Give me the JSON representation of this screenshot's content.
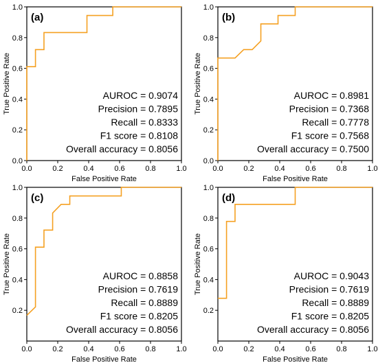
{
  "chart_data": [
    {
      "type": "line",
      "panel_label": "(a)",
      "xlabel": "False Positive Rate",
      "ylabel": "True Positive Rate",
      "xlim": [
        0,
        1
      ],
      "ylim": [
        0,
        1
      ],
      "xticks": [
        "0.0",
        "0.2",
        "0.4",
        "0.6",
        "0.8",
        "1.0"
      ],
      "yticks": [
        "0.0",
        "0.2",
        "0.4",
        "0.6",
        "0.8",
        "1.0"
      ],
      "grid": false,
      "series": [
        {
          "color": "#F5A021",
          "x": [
            0,
            0,
            0.056,
            0.056,
            0.111,
            0.111,
            0.389,
            0.389,
            0.556,
            0.556,
            1.0
          ],
          "y": [
            0,
            0.611,
            0.611,
            0.722,
            0.722,
            0.833,
            0.833,
            0.944,
            0.944,
            1.0,
            1.0
          ]
        }
      ],
      "metrics": [
        "AUROC = 0.9074",
        "Precision = 0.7895",
        "Recall = 0.8333",
        "F1 score = 0.8108",
        "Overall accuracy = 0.8056"
      ]
    },
    {
      "type": "line",
      "panel_label": "(b)",
      "xlabel": "False Positive Rate",
      "ylabel": "True Positive Rate",
      "xlim": [
        0,
        1
      ],
      "ylim": [
        0,
        1
      ],
      "xticks": [
        "0.0",
        "0.2",
        "0.4",
        "0.6",
        "0.8",
        "1.0"
      ],
      "yticks": [
        "0.0",
        "0.2",
        "0.4",
        "0.6",
        "0.8",
        "1.0"
      ],
      "grid": false,
      "series": [
        {
          "color": "#F5A021",
          "x": [
            0,
            0,
            0.111,
            0.167,
            0.222,
            0.278,
            0.278,
            0.389,
            0.389,
            0.5,
            0.5,
            1.0
          ],
          "y": [
            0,
            0.667,
            0.667,
            0.722,
            0.722,
            0.778,
            0.889,
            0.889,
            0.944,
            0.944,
            1.0,
            1.0
          ]
        }
      ],
      "metrics": [
        "AUROC = 0.8981",
        "Precision = 0.7368",
        "Recall = 0.7778",
        "F1 score = 0.7568",
        "Overall accuracy = 0.7500"
      ]
    },
    {
      "type": "line",
      "panel_label": "(c)",
      "xlabel": "False Positive Rate",
      "ylabel": "True Positive Rate",
      "xlim": [
        0,
        1
      ],
      "ylim": [
        0,
        1
      ],
      "xticks": [
        "0.0",
        "0.2",
        "0.4",
        "0.6",
        "0.8",
        "1.0"
      ],
      "yticks": [
        "0.2",
        "0.4",
        "0.6",
        "0.8",
        "1.0"
      ],
      "grid": false,
      "series": [
        {
          "color": "#F5A021",
          "x": [
            0,
            0.056,
            0.056,
            0.111,
            0.111,
            0.167,
            0.167,
            0.222,
            0.278,
            0.278,
            0.611,
            0.611,
            1.0
          ],
          "y": [
            0.167,
            0.222,
            0.611,
            0.611,
            0.722,
            0.722,
            0.833,
            0.889,
            0.889,
            0.944,
            0.944,
            1.0,
            1.0
          ]
        }
      ],
      "metrics": [
        "AUROC = 0.8858",
        "Precision = 0.7619",
        "Recall = 0.8889",
        "F1 score = 0.8205",
        "Overall accuracy = 0.8056"
      ]
    },
    {
      "type": "line",
      "panel_label": "(d)",
      "xlabel": "False Positive Rate",
      "ylabel": "True Positive Rate",
      "xlim": [
        0,
        1
      ],
      "ylim": [
        0,
        1
      ],
      "xticks": [
        "0.0",
        "0.2",
        "0.4",
        "0.6",
        "0.8",
        "1.0"
      ],
      "yticks": [
        "0.2",
        "0.4",
        "0.6",
        "0.8",
        "1.0"
      ],
      "grid": false,
      "series": [
        {
          "color": "#F5A021",
          "x": [
            0,
            0.056,
            0.056,
            0.111,
            0.111,
            0.5,
            0.5,
            1.0
          ],
          "y": [
            0.278,
            0.278,
            0.778,
            0.778,
            0.889,
            0.889,
            1.0,
            1.0
          ]
        }
      ],
      "metrics": [
        "AUROC = 0.9043",
        "Precision = 0.7619",
        "Recall = 0.8889",
        "F1 score = 0.8205",
        "Overall accuracy = 0.8056"
      ]
    }
  ]
}
